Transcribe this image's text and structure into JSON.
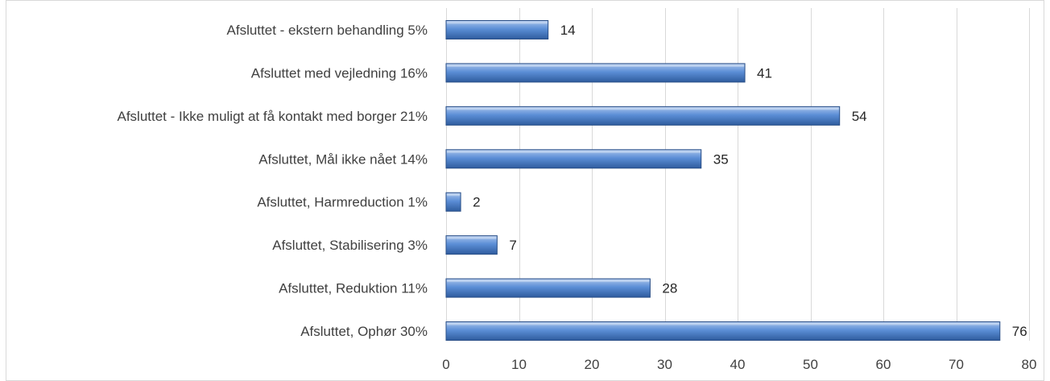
{
  "chart_data": {
    "type": "bar",
    "orientation": "horizontal",
    "categories": [
      "Afsluttet - ekstern behandling 5%",
      "Afsluttet med vejledning 16%",
      "Afsluttet - Ikke muligt at få kontakt med borger 21%",
      "Afsluttet, Mål ikke nået 14%",
      "Afsluttet, Harmreduction 1%",
      "Afsluttet, Stabilisering 3%",
      "Afsluttet, Reduktion 11%",
      "Afsluttet, Ophør 30%"
    ],
    "values": [
      14,
      41,
      54,
      35,
      2,
      7,
      28,
      76
    ],
    "data_labels": [
      "14",
      "41",
      "54",
      "35",
      "2",
      "7",
      "28",
      "76"
    ],
    "xlim": [
      0,
      80
    ],
    "x_ticks": [
      "0",
      "10",
      "20",
      "30",
      "40",
      "50",
      "60",
      "70",
      "80"
    ],
    "grid": true,
    "legend": "none",
    "colors": {
      "bar_top": "#a9c4ec",
      "bar_mid": "#5b8ed6",
      "bar_bottom": "#2f5c9e",
      "bar_edge": "#2a4f87",
      "grid": "#d9d9d9",
      "frame": "#d9d9d9",
      "text": "#404040"
    }
  }
}
